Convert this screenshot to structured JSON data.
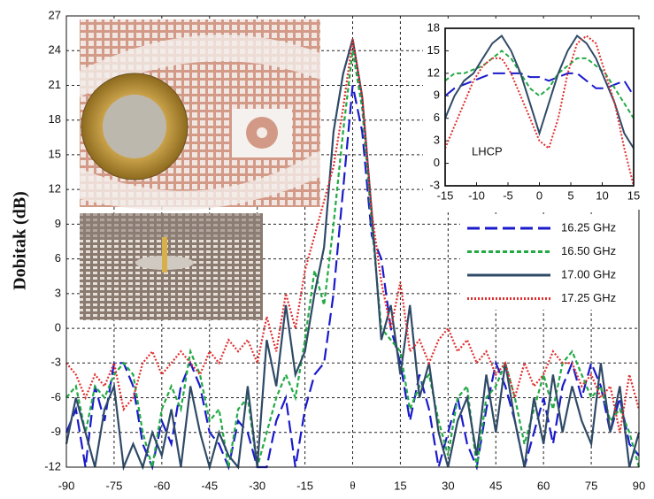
{
  "chart_data": [
    {
      "type": "line",
      "y_label": "Dobitak (dB)",
      "x": [
        -90,
        -87,
        -84,
        -81,
        -78,
        -75,
        -72,
        -69,
        -66,
        -63,
        -60,
        -57,
        -54,
        -51,
        -48,
        -45,
        -42,
        -39,
        -36,
        -33,
        -30,
        -27,
        -24,
        -21,
        -18,
        -15,
        -12,
        -9,
        -6,
        -3,
        0,
        3,
        6,
        9,
        12,
        15,
        18,
        21,
        24,
        27,
        30,
        33,
        36,
        39,
        42,
        45,
        48,
        51,
        54,
        57,
        60,
        63,
        66,
        69,
        72,
        75,
        78,
        81,
        84,
        87,
        90
      ],
      "xlim": [
        -90,
        90
      ],
      "xticks": [
        -90,
        -75,
        -60,
        -45,
        -30,
        -15,
        {
          "value": 0,
          "label": "θ"
        },
        15,
        30,
        45,
        60,
        75,
        90
      ],
      "ylim": [
        -12,
        27
      ],
      "yticks": [
        -12,
        -9,
        -6,
        -3,
        0,
        3,
        6,
        9,
        12,
        15,
        18,
        21,
        24,
        27
      ],
      "grid": true,
      "legend": "lower-right",
      "series": [
        {
          "name": "16.25 GHz",
          "color": "#1a1acc",
          "style": "dashed",
          "values": [
            -9,
            -7,
            -12,
            -5,
            -8,
            -3,
            -3,
            -5,
            -10,
            -12,
            -8,
            -10,
            -5,
            -3,
            -5,
            -9,
            -10,
            -12,
            -8,
            -9,
            -12,
            -12,
            -8,
            -6,
            -12,
            -7,
            -4,
            -3,
            3,
            12,
            21,
            17,
            8,
            6,
            0,
            -3,
            -8,
            -4,
            -7,
            -12,
            -9,
            -6,
            -10,
            -12,
            -7,
            -3,
            -5,
            -8,
            -12,
            -9,
            -6,
            -10,
            -5,
            -3,
            -6,
            -3,
            -5,
            -9,
            -6,
            -10,
            -11
          ]
        },
        {
          "name": "16.50 GHz",
          "color": "#22aa44",
          "style": "short-dashed",
          "values": [
            -6,
            -5,
            -9,
            -5,
            -6,
            -4,
            -3,
            -4,
            -9,
            -12,
            -7,
            -5,
            -7,
            -2,
            -4,
            -8,
            -7,
            -12,
            -7,
            -6,
            -12,
            -9,
            -6,
            -4,
            -6,
            -1,
            5,
            2,
            9,
            17,
            24,
            19,
            9,
            0,
            -1,
            -2,
            -7,
            -5,
            -4,
            -8,
            -11,
            -6,
            -5,
            -12,
            -6,
            -5,
            -3,
            -6,
            -10,
            -7,
            -4,
            -7,
            -3,
            -2,
            -4,
            -6,
            -5,
            -8,
            -7,
            -9,
            -12
          ]
        },
        {
          "name": "17.00 GHz",
          "color": "#2f4a66",
          "style": "solid",
          "values": [
            -10,
            -6,
            -9,
            -12,
            -7,
            -5,
            -12,
            -10,
            -12,
            -9,
            -11,
            -7,
            -12,
            -5,
            -9,
            -12,
            -9,
            -11,
            -12,
            -5,
            -12,
            -1,
            -5,
            2,
            -4,
            -2,
            3,
            7,
            17,
            22,
            25,
            20,
            10,
            -1,
            2,
            -4,
            2,
            -6,
            -3,
            -9,
            -12,
            -8,
            -6,
            -11,
            -4,
            -9,
            -3,
            -8,
            -12,
            -6,
            -10,
            -4,
            -9,
            -5,
            -8,
            -10,
            -3,
            -9,
            -5,
            -12,
            -9
          ]
        },
        {
          "name": "17.25 GHz",
          "color": "#e03030",
          "style": "dotted",
          "values": [
            -3,
            -4,
            -6,
            -4,
            -5,
            -3,
            -7,
            -6,
            -3,
            -2,
            -4,
            -3,
            -2,
            -3,
            -4,
            -2,
            -3,
            -1,
            -2,
            -1,
            -3,
            1,
            -2,
            3,
            0,
            5,
            8,
            11,
            14,
            19,
            25,
            20,
            10,
            4,
            0,
            4,
            -2,
            -1,
            -3,
            -1,
            0,
            -2,
            -1,
            -3,
            -2,
            -4,
            -3,
            -6,
            -3,
            -5,
            -4,
            -2,
            -3,
            -3,
            -5,
            -4,
            -6,
            -5,
            -9,
            -4,
            -7
          ]
        }
      ]
    },
    {
      "type": "line",
      "annotation": "LHCP",
      "x": [
        -15,
        -13.5,
        -12,
        -10.5,
        -9,
        -7.5,
        -6,
        -4.5,
        -3,
        -1.5,
        0,
        1.5,
        3,
        4.5,
        6,
        7.5,
        9,
        10.5,
        12,
        13.5,
        15
      ],
      "xlim": [
        -15,
        15
      ],
      "xticks": [
        -15,
        -10,
        -5,
        0,
        5,
        10,
        15
      ],
      "ylim": [
        -3,
        18
      ],
      "yticks": [
        -3,
        0,
        3,
        6,
        9,
        12,
        15,
        18
      ],
      "grid": false,
      "series": [
        {
          "color": "#1a1acc",
          "style": "dashed",
          "values": [
            9,
            10,
            10.5,
            11,
            11.5,
            12,
            12,
            12,
            12,
            11.5,
            11.5,
            11,
            11.5,
            12,
            12,
            11,
            10,
            10,
            10.5,
            11,
            9
          ]
        },
        {
          "color": "#22aa44",
          "style": "short-dashed",
          "values": [
            11,
            12,
            12,
            12.5,
            13,
            14,
            15,
            14,
            12,
            10,
            9,
            10,
            12,
            13,
            14,
            14,
            13,
            12,
            10,
            8,
            6
          ]
        },
        {
          "color": "#2f4a66",
          "style": "solid",
          "values": [
            6,
            9,
            11,
            12,
            14,
            16,
            17,
            15,
            12,
            8,
            4,
            8,
            12,
            15,
            17,
            16,
            14,
            11,
            8,
            4,
            2
          ]
        },
        {
          "color": "#e03030",
          "style": "dotted",
          "values": [
            2,
            5,
            8,
            11,
            13,
            14,
            14,
            12,
            9,
            6,
            3,
            2,
            6,
            12,
            16,
            17,
            16,
            12,
            8,
            2,
            -3
          ]
        }
      ]
    }
  ]
}
